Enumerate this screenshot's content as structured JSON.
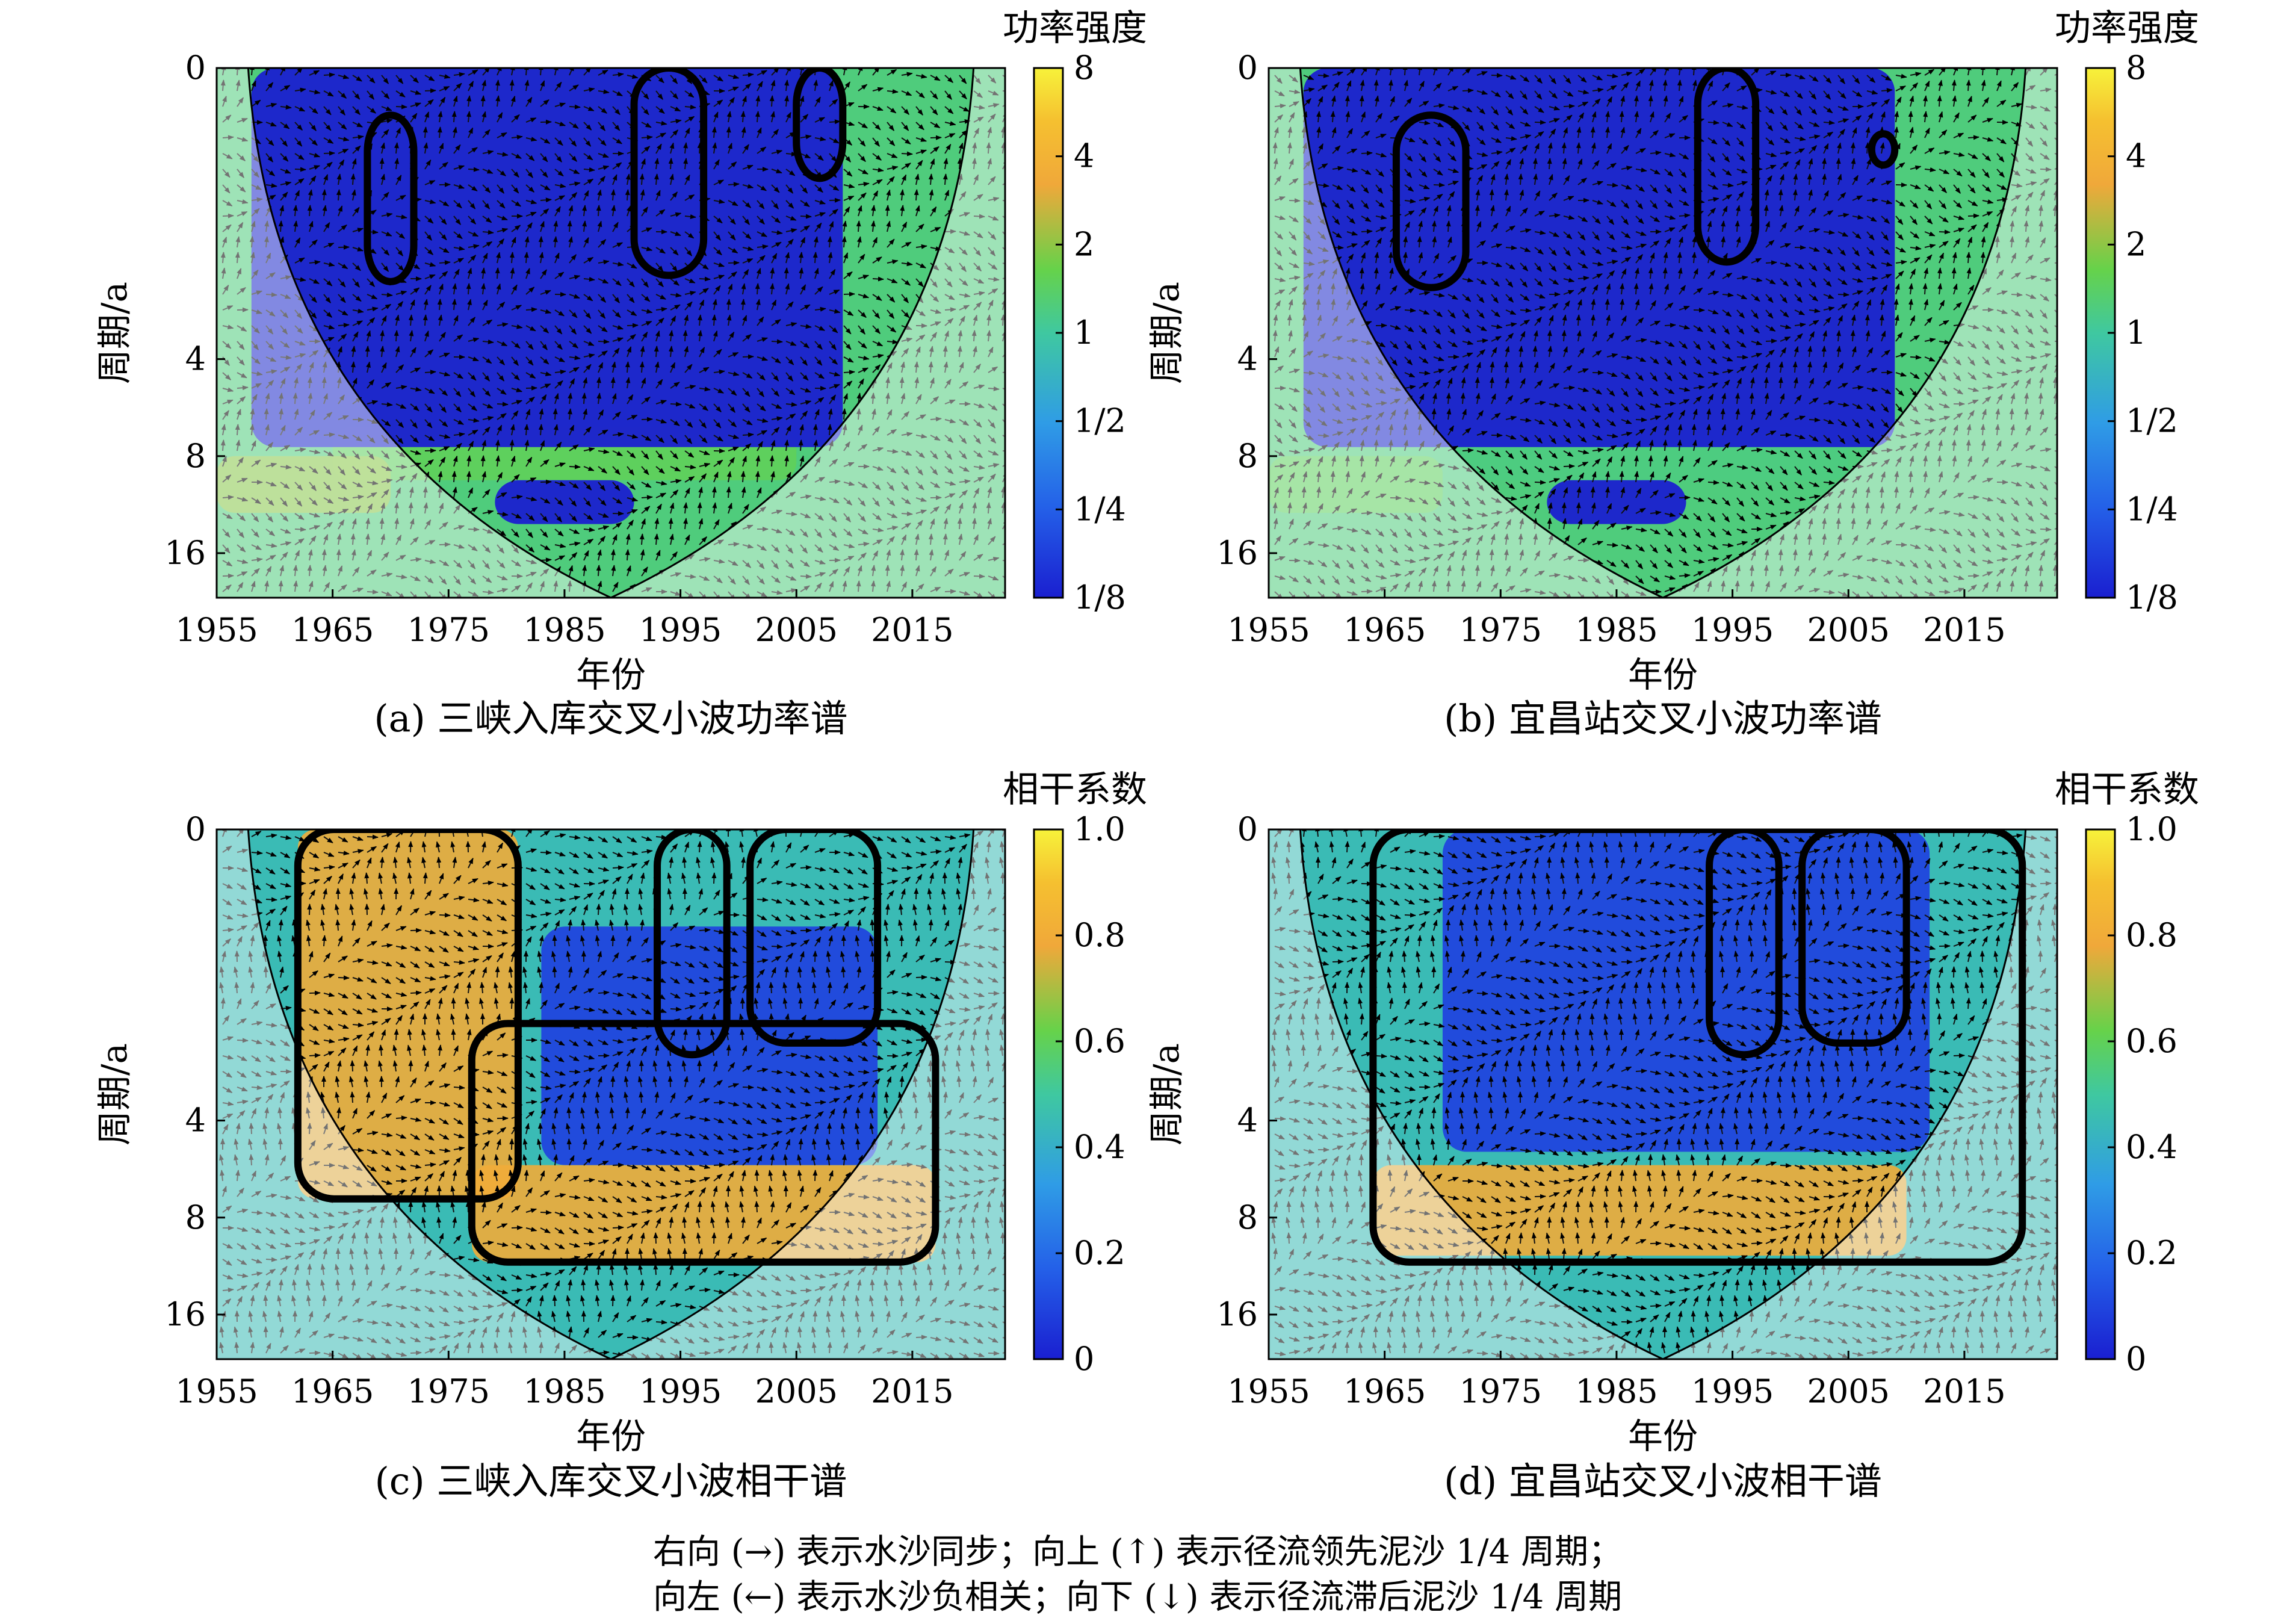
{
  "figure": {
    "note_lines": [
      "右向 (→) 表示水沙同步；向上 (↑) 表示径流领先泥沙 1/4 周期；",
      "向左 (←) 表示水沙负相关；向下 (↓) 表示径流滞后泥沙 1/4 周期"
    ]
  },
  "colors": {
    "dark_blue": "#1f30d8",
    "mid_blue": "#2f8fe8",
    "green": "#4fd06a",
    "orange": "#f0a83a",
    "yellow": "#f5f03a",
    "coi_wash": "#d9d6ff",
    "significance_contour": "#000000",
    "outside_contour": "#808080"
  },
  "chart_data": [
    {
      "id": "a",
      "type": "heatmap",
      "title": "(a) 三峡入库交叉小波功率谱",
      "xlabel": "年份",
      "ylabel": "周期/a",
      "xticks": [
        "1955",
        "1965",
        "1975",
        "1985",
        "1995",
        "2005",
        "2015"
      ],
      "yticks": [
        "0",
        "4",
        "8",
        "16"
      ],
      "xlim": [
        1955,
        2023
      ],
      "ylim_period_a": [
        0,
        22
      ],
      "period_scale": "log2",
      "colorbar": {
        "title": "功率强度",
        "ticks": [
          "8",
          "4",
          "2",
          "1",
          "1/2",
          "1/4",
          "1/8"
        ],
        "range": [
          0.125,
          8
        ],
        "scale": "log2"
      },
      "cone_of_influence_min_year": 1989,
      "significant_regions": [
        {
          "years": [
            1968,
            1972
          ],
          "periods": [
            0.7,
            2.3
          ]
        },
        {
          "years": [
            1991,
            1997
          ],
          "periods": [
            0.5,
            2.2
          ]
        },
        {
          "years": [
            2005,
            2009
          ],
          "periods": [
            0.5,
            1.1
          ]
        }
      ],
      "low_power_regions": [
        {
          "years": [
            1958,
            2009
          ],
          "periods": [
            0.5,
            7.5
          ],
          "value": 0.125
        },
        {
          "years": [
            1979,
            1991
          ],
          "periods": [
            9.5,
            13
          ],
          "value": 0.125
        }
      ],
      "moderate_power_regions": [
        {
          "years": [
            1965,
            2005
          ],
          "periods": [
            6.5,
            9.5
          ],
          "value": 1.5
        },
        {
          "years": [
            1955,
            1970
          ],
          "periods": [
            8,
            12
          ],
          "value": 2.0
        }
      ]
    },
    {
      "id": "b",
      "type": "heatmap",
      "title": "(b) 宜昌站交叉小波功率谱",
      "xlabel": "年份",
      "ylabel": "周期/a",
      "xticks": [
        "1955",
        "1965",
        "1975",
        "1985",
        "1995",
        "2005",
        "2015"
      ],
      "yticks": [
        "0",
        "4",
        "8",
        "16"
      ],
      "xlim": [
        1955,
        2023
      ],
      "ylim_period_a": [
        0,
        22
      ],
      "period_scale": "log2",
      "colorbar": {
        "title": "功率强度",
        "ticks": [
          "8",
          "4",
          "2",
          "1",
          "1/2",
          "1/4",
          "1/8"
        ],
        "range": [
          0.125,
          8
        ],
        "scale": "log2"
      },
      "cone_of_influence_min_year": 1989,
      "significant_regions": [
        {
          "years": [
            1966,
            1972
          ],
          "periods": [
            0.7,
            2.4
          ]
        },
        {
          "years": [
            1992,
            1997
          ],
          "periods": [
            0.5,
            2.0
          ]
        },
        {
          "years": [
            2007,
            2009
          ],
          "periods": [
            0.8,
            1.0
          ]
        }
      ],
      "low_power_regions": [
        {
          "years": [
            1958,
            2009
          ],
          "periods": [
            0.5,
            7.5
          ],
          "value": 0.125
        },
        {
          "years": [
            1979,
            1991
          ],
          "periods": [
            9.5,
            13
          ],
          "value": 0.125
        }
      ],
      "moderate_power_regions": [
        {
          "years": [
            1965,
            2005
          ],
          "periods": [
            6.5,
            9.5
          ],
          "value": 1.2
        },
        {
          "years": [
            1955,
            1970
          ],
          "periods": [
            8,
            12
          ],
          "value": 1.5
        }
      ]
    },
    {
      "id": "c",
      "type": "heatmap",
      "title": "(c) 三峡入库交叉小波相干谱",
      "xlabel": "年份",
      "ylabel": "周期/a",
      "xticks": [
        "1955",
        "1965",
        "1975",
        "1985",
        "1995",
        "2005",
        "2015"
      ],
      "yticks": [
        "0",
        "4",
        "8",
        "16"
      ],
      "xlim": [
        1955,
        2023
      ],
      "ylim_period_a": [
        0,
        22
      ],
      "period_scale": "log2",
      "colorbar": {
        "title": "相干系数",
        "ticks": [
          "1.0",
          "0.8",
          "0.6",
          "0.4",
          "0.2",
          "0"
        ],
        "range": [
          0,
          1
        ],
        "scale": "linear"
      },
      "cone_of_influence_min_year": 1989,
      "significant_regions": [
        {
          "years": [
            1962,
            1981
          ],
          "periods": [
            0.5,
            7.0
          ]
        },
        {
          "years": [
            1977,
            2017
          ],
          "periods": [
            2.0,
            11.0
          ]
        },
        {
          "years": [
            1993,
            1999
          ],
          "periods": [
            0.5,
            2.5
          ]
        },
        {
          "years": [
            2001,
            2012
          ],
          "periods": [
            0.5,
            2.3
          ]
        }
      ],
      "low_coherence_regions": [
        {
          "years": [
            1983,
            2012
          ],
          "periods": [
            1.0,
            5.5
          ],
          "value": 0.1
        }
      ],
      "high_coherence_regions": [
        {
          "years": [
            1962,
            1981
          ],
          "periods": [
            0.5,
            7.0
          ],
          "value": 0.8
        },
        {
          "years": [
            1977,
            2017
          ],
          "periods": [
            5.5,
            11.0
          ],
          "value": 0.8
        }
      ]
    },
    {
      "id": "d",
      "type": "heatmap",
      "title": "(d) 宜昌站交叉小波相干谱",
      "xlabel": "年份",
      "ylabel": "周期/a",
      "xticks": [
        "1955",
        "1965",
        "1975",
        "1985",
        "1995",
        "2005",
        "2015"
      ],
      "yticks": [
        "0",
        "4",
        "8",
        "16"
      ],
      "xlim": [
        1955,
        2023
      ],
      "ylim_period_a": [
        0,
        22
      ],
      "period_scale": "log2",
      "colorbar": {
        "title": "相干系数",
        "ticks": [
          "1.0",
          "0.8",
          "0.6",
          "0.4",
          "0.2",
          "0"
        ],
        "range": [
          0,
          1
        ],
        "scale": "linear"
      },
      "cone_of_influence_min_year": 1989,
      "significant_regions": [
        {
          "years": [
            1964,
            2020
          ],
          "periods": [
            0.5,
            11.0
          ]
        },
        {
          "years": [
            1993,
            1999
          ],
          "periods": [
            0.5,
            2.5
          ]
        },
        {
          "years": [
            2001,
            2010
          ],
          "periods": [
            0.5,
            2.3
          ]
        }
      ],
      "low_coherence_regions": [
        {
          "years": [
            1970,
            2012
          ],
          "periods": [
            0.5,
            5.0
          ],
          "value": 0.1
        }
      ],
      "high_coherence_regions": [
        {
          "years": [
            1964,
            2010
          ],
          "periods": [
            5.5,
            10.5
          ],
          "value": 0.8
        }
      ]
    }
  ]
}
